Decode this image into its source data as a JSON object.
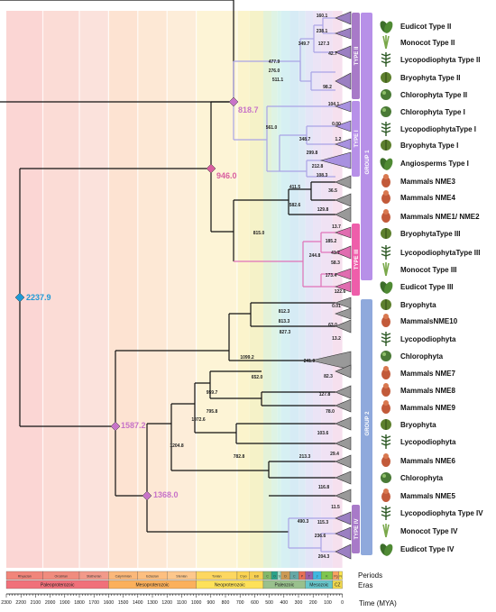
{
  "colors": {
    "tree_line": "#111111",
    "group1_line": "#a9a3e6",
    "type2_line": "#a9a3e6",
    "type3_line": "#e070b8",
    "type4_line": "#a9a3e6",
    "root_node": "#1e9ad6",
    "hub_node": "#d86bd0",
    "hub_946": "#e05a9a",
    "group1_bar": "#b790e8",
    "group2_bar": "#8fa9dc",
    "type2_bar": "#a87ac8",
    "type1_bar": "#b790e8",
    "type3_bar": "#ee5eaa",
    "type4_bar": "#a87ac8"
  },
  "hub_nodes": [
    {
      "label": "2237.9",
      "color": "#1e9ad6"
    },
    {
      "label": "1587.2",
      "color": "#c773c8"
    },
    {
      "label": "1368.0",
      "color": "#c773c8"
    },
    {
      "label": "946.0",
      "color": "#d95ea0"
    },
    {
      "label": "818.7",
      "color": "#c773c8"
    }
  ],
  "node_labels": [
    "160.1",
    "238.1",
    "349.7",
    "127.3",
    "42.7",
    "477.9",
    "276.0",
    "511.1",
    "98.2",
    "104.1",
    "561.0",
    "0.00",
    "348.7",
    "1.2",
    "299.8",
    "212.8",
    "108.3",
    "411.5",
    "36.5",
    "582.6",
    "129.8",
    "815.0",
    "13.7",
    "185.2",
    "41.7",
    "244.8",
    "58.3",
    "173.4",
    "122.6",
    "0.01",
    "812.3",
    "813.3",
    "63.0",
    "827.3",
    "13.2",
    "1099.2",
    "241.9",
    "82.3",
    "652.0",
    "127.8",
    "78.0",
    "959.7",
    "795.8",
    "103.6",
    "1072.6",
    "29.4",
    "1204.8",
    "782.8",
    "213.3",
    "116.8",
    "11.5",
    "490.3",
    "115.3",
    "236.6",
    "204.3"
  ],
  "taxa": [
    {
      "name": "Eudicot Type II",
      "icon": "eudicot-icon"
    },
    {
      "name": "Monocot Type II",
      "icon": "monocot-icon"
    },
    {
      "name": "Lycopodiophyta Type II",
      "icon": "lycopod-icon"
    },
    {
      "name": "Bryophyta Type II",
      "icon": "moss-icon"
    },
    {
      "name": "Chlorophyta Type II",
      "icon": "green-alga-icon"
    },
    {
      "name": "Chlorophyta Type I",
      "icon": "green-alga-icon"
    },
    {
      "name": "LycopodiophytaType I",
      "icon": "lycopod-icon"
    },
    {
      "name": "Bryophyta Type I",
      "icon": "moss-icon"
    },
    {
      "name": "Angiosperms Type I",
      "icon": "angiosperm-icon"
    },
    {
      "name": "Mammals NME3",
      "icon": "mammal-icon"
    },
    {
      "name": "Mammals NME4",
      "icon": "mammal-icon"
    },
    {
      "name": "Mammals NME1/ NME2",
      "icon": "mammal-icon"
    },
    {
      "name": "BryophytaType III",
      "icon": "moss-icon"
    },
    {
      "name": "LycopodiophytaType III",
      "icon": "lycopod-icon"
    },
    {
      "name": "Monocot Type III",
      "icon": "monocot-icon"
    },
    {
      "name": "Eudicot Type III",
      "icon": "eudicot-icon"
    },
    {
      "name": "Bryophyta",
      "icon": "moss-icon"
    },
    {
      "name": "MammalsNME10",
      "icon": "mammal-icon"
    },
    {
      "name": "Lycopodiophyta",
      "icon": "lycopod-icon"
    },
    {
      "name": "Chlorophyta",
      "icon": "green-alga-icon"
    },
    {
      "name": "Mammals NME7",
      "icon": "mammal-icon"
    },
    {
      "name": "Mammals NME8",
      "icon": "mammal-icon"
    },
    {
      "name": "Mammals NME9",
      "icon": "mammal-icon"
    },
    {
      "name": "Bryophyta",
      "icon": "moss-icon"
    },
    {
      "name": "Lycopodiophyta",
      "icon": "lycopod-icon"
    },
    {
      "name": "Mammals NME6",
      "icon": "mammal-icon"
    },
    {
      "name": "Chlorophyta",
      "icon": "green-alga-icon"
    },
    {
      "name": "Mammals NME5",
      "icon": "mammal-icon"
    },
    {
      "name": "Lycopodiophyta Type IV",
      "icon": "lycopod-icon"
    },
    {
      "name": "Monocot Type IV",
      "icon": "monocot-icon"
    },
    {
      "name": "Eudicot Type IV",
      "icon": "eudicot-icon"
    }
  ],
  "group_labels": {
    "group1": "GROUP 1",
    "group2": "GROUP 2",
    "type2": "TYPE II",
    "type1": "TYPE I",
    "type3": "TYPE III",
    "type4": "TYPE IV"
  },
  "periods": [
    "Rhyacian",
    "Orosirian",
    "Statherian",
    "Calymmian",
    "Ectasian",
    "Stenian",
    "Tonian",
    "Cryo",
    "Edi",
    "C",
    "O",
    "S",
    "D",
    "C",
    "P",
    "T",
    "J",
    "K",
    "Pg",
    "N"
  ],
  "eras": [
    "Paleoproterozoic",
    "Mesoproterozoic",
    "Neoproterozoic",
    "Paleozoic",
    "Mesozoic",
    "CZ"
  ],
  "axis": {
    "row_periods": "Periods",
    "row_eras": "Eras",
    "title": "Time (MYA)",
    "ticks": [
      "2300",
      "2200",
      "2100",
      "2000",
      "1900",
      "1800",
      "1700",
      "1600",
      "1500",
      "1400",
      "1300",
      "1200",
      "1100",
      "1000",
      "900",
      "800",
      "700",
      "600",
      "500",
      "400",
      "300",
      "200",
      "100",
      "0"
    ]
  }
}
